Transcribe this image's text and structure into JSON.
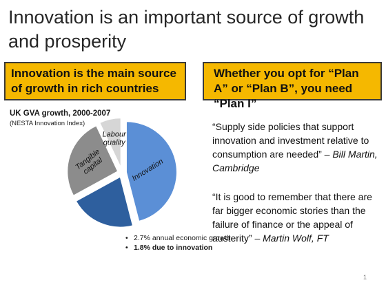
{
  "slide": {
    "title": "Innovation is an important source of growth and prosperity",
    "left_box": "Innovation is the main source of growth in rich countries",
    "right_box": "Whether you opt for “Plan A” or “Plan B”, you need “Plan I”",
    "page_number": "1"
  },
  "chart_data": {
    "type": "pie",
    "title": "UK GVA growth, 2000-2007",
    "subtitle": "(NESTA Innovation Index)",
    "slices": [
      {
        "name": "Innovation",
        "value": 46,
        "color": "#5b8fd6"
      },
      {
        "name": "",
        "value": 21,
        "color": "#2e5f9e"
      },
      {
        "name": "Tangible capital",
        "value": 26,
        "color": "#8c8c8c"
      },
      {
        "name": "Labour quality",
        "value": 7,
        "color": "#d6d6d6"
      }
    ],
    "annotations": [
      "2.7% annual economic growth",
      "1.8% due to innovation"
    ]
  },
  "quotes": [
    {
      "text": "“Supply side policies that support innovation and investment relative to consumption are needed” – ",
      "author": "Bill Martin, Cambridge"
    },
    {
      "text": "“It is good to remember that there are far bigger economic stories than the failure of finance or the appeal of austerity” – ",
      "author": "Martin Wolf, FT"
    }
  ]
}
